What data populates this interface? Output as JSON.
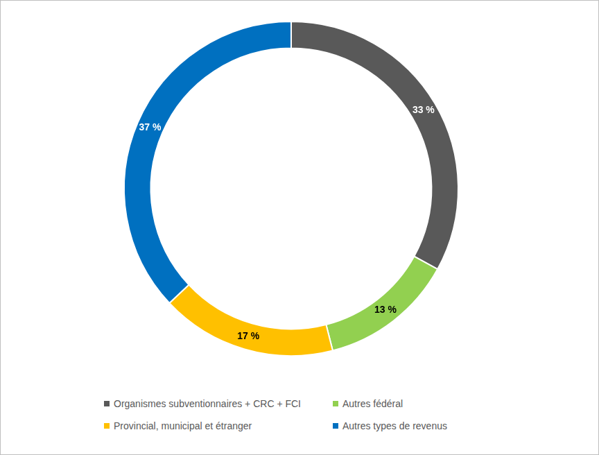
{
  "chart_data": {
    "type": "doughnut",
    "categories": [
      "Organismes subventionnaires + CRC + FCI",
      "Autres fédéral",
      "Provincial, municipal et étranger",
      "Autres types de revenus"
    ],
    "values": [
      33,
      13,
      17,
      37
    ],
    "value_labels": [
      "33 %",
      "13 %",
      "17 %",
      "37 %"
    ],
    "colors": [
      "#595959",
      "#92d050",
      "#ffc000",
      "#0070c0"
    ],
    "data_labels": true,
    "legend": "bottom"
  }
}
